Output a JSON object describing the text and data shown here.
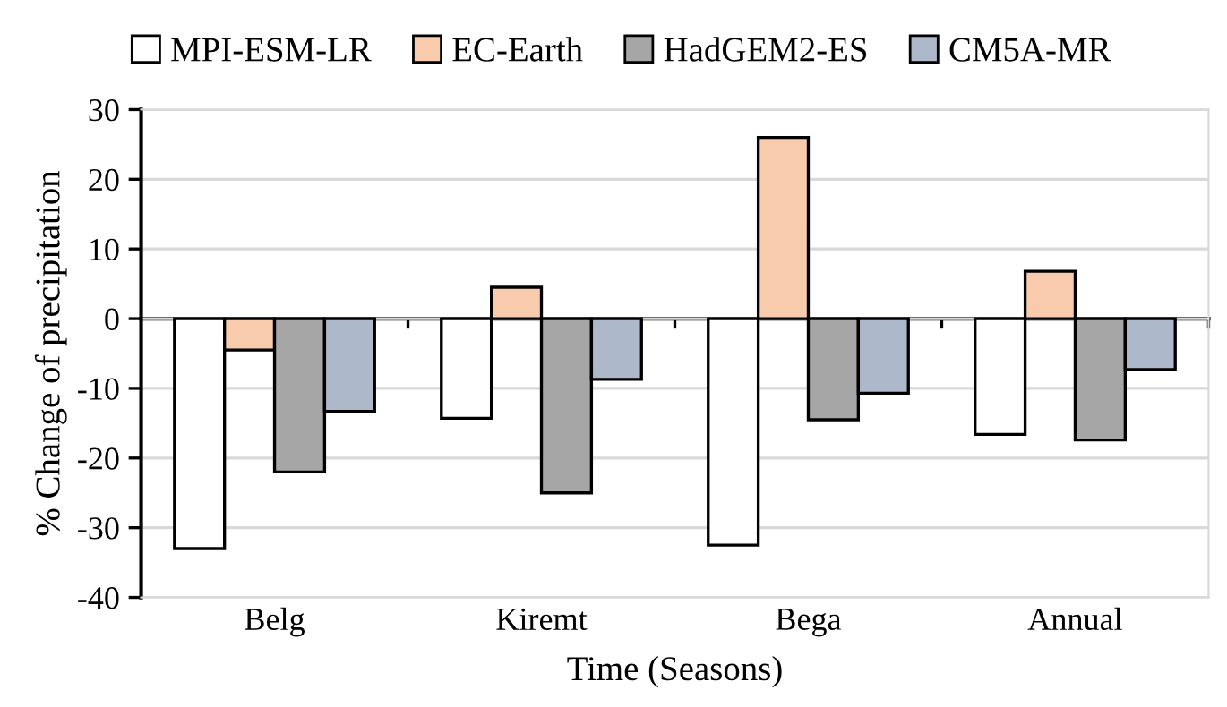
{
  "chart_data": {
    "type": "bar",
    "xlabel": "Time (Seasons)",
    "ylabel": "% Change of precipitation",
    "categories": [
      "Belg",
      "Kiremt",
      "Bega",
      "Annual"
    ],
    "series": [
      {
        "name": "MPI-ESM-LR",
        "color": "#ffffff",
        "values": [
          -33,
          -14.3,
          -32.5,
          -16.6
        ]
      },
      {
        "name": "EC-Earth",
        "color": "#f8cbad",
        "values": [
          -4.5,
          4.5,
          26,
          6.8
        ]
      },
      {
        "name": "HadGEM2-ES",
        "color": "#a6a6a6",
        "values": [
          -22,
          -25,
          -14.5,
          -17.4
        ]
      },
      {
        "name": "CM5A-MR",
        "color": "#adb9ca",
        "values": [
          -13.3,
          -8.7,
          -10.7,
          -7.3
        ]
      }
    ],
    "ylim": [
      -40,
      30
    ],
    "yticks": [
      -40,
      -30,
      -20,
      -10,
      0,
      10,
      20,
      30
    ],
    "grid": "y",
    "legend": "top"
  }
}
